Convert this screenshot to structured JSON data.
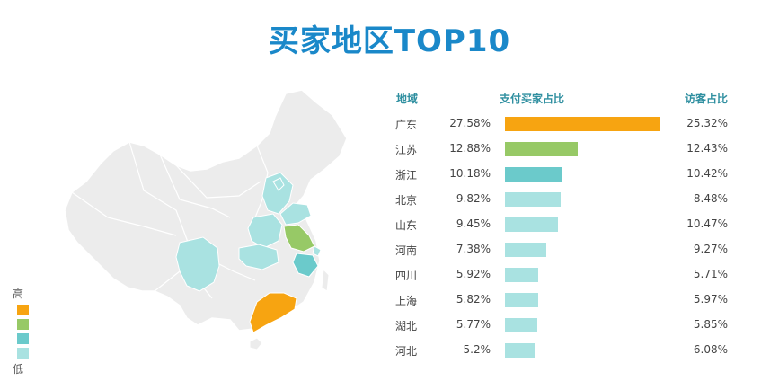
{
  "title": "买家地区TOP10",
  "legend": {
    "high": "高",
    "low": "低",
    "colors": [
      "#f7a411",
      "#97c966",
      "#6bcacb",
      "#a9e2e1"
    ]
  },
  "columns": {
    "region": "地域",
    "buyer_share": "支付买家占比",
    "visitor_share": "访客占比"
  },
  "chart_data": {
    "type": "bar",
    "categories": [
      "广东",
      "江苏",
      "浙江",
      "北京",
      "山东",
      "河南",
      "四川",
      "上海",
      "湖北",
      "河北"
    ],
    "series": [
      {
        "name": "支付买家占比",
        "values": [
          27.58,
          12.88,
          10.18,
          9.82,
          9.45,
          7.38,
          5.92,
          5.82,
          5.77,
          5.2
        ],
        "labels": [
          "27.58%",
          "12.88%",
          "10.18%",
          "9.82%",
          "9.45%",
          "7.38%",
          "5.92%",
          "5.82%",
          "5.77%",
          "5.2%"
        ]
      },
      {
        "name": "访客占比",
        "values": [
          25.32,
          12.43,
          10.42,
          8.48,
          10.47,
          9.27,
          5.71,
          5.97,
          5.85,
          6.08
        ],
        "labels": [
          "25.32%",
          "12.43%",
          "10.42%",
          "8.48%",
          "10.47%",
          "9.27%",
          "5.71%",
          "5.97%",
          "5.85%",
          "6.08%"
        ]
      }
    ],
    "bar_colors": [
      "#f7a411",
      "#97c966",
      "#6bcacb",
      "#a9e2e1",
      "#a9e2e1",
      "#a9e2e1",
      "#a9e2e1",
      "#a9e2e1",
      "#a9e2e1",
      "#a9e2e1"
    ],
    "xlim": [
      0,
      28
    ]
  },
  "map": {
    "base_color": "#ececec",
    "regions": [
      {
        "name": "广东",
        "color": "#f7a411"
      },
      {
        "name": "江苏",
        "color": "#97c966"
      },
      {
        "name": "浙江",
        "color": "#6bcacb"
      },
      {
        "name": "北京",
        "color": "#a9e2e1"
      },
      {
        "name": "山东",
        "color": "#a9e2e1"
      },
      {
        "name": "河南",
        "color": "#a9e2e1"
      },
      {
        "name": "四川",
        "color": "#a9e2e1"
      },
      {
        "name": "上海",
        "color": "#a9e2e1"
      },
      {
        "name": "湖北",
        "color": "#a9e2e1"
      },
      {
        "name": "河北",
        "color": "#a9e2e1"
      }
    ]
  }
}
